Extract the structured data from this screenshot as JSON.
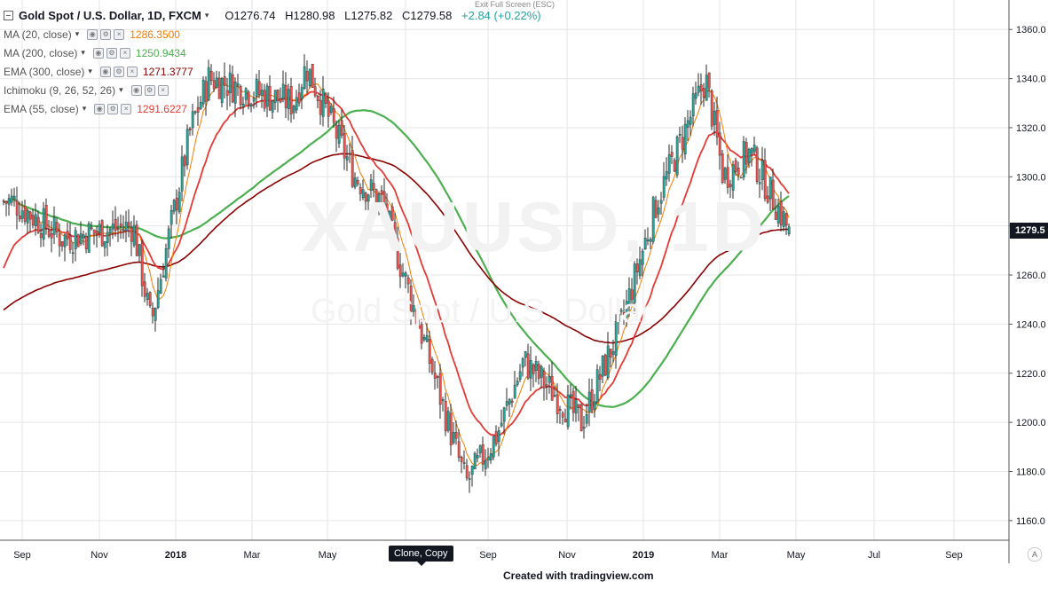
{
  "header": {
    "symbol_title": "Gold Spot / U.S. Dollar, 1D, FXCM",
    "open": "O1276.74",
    "high": "H1280.98",
    "low": "L1275.82",
    "close": "C1279.58",
    "change": "+2.84 (+0.22%)",
    "exit_full_screen": "Exit Full Screen (ESC)"
  },
  "indicators": [
    {
      "label": "MA (20, close)",
      "value": "1286.3500",
      "color": "#f57c00"
    },
    {
      "label": "MA (200, close)",
      "value": "1250.9434",
      "color": "#4caf50"
    },
    {
      "label": "EMA (300, close)",
      "value": "1271.3777",
      "color": "#8b0000"
    },
    {
      "label": "Ichimoku (9, 26, 52, 26)",
      "value": "",
      "color": "#2196f3"
    },
    {
      "label": "EMA (55, close)",
      "value": "1291.6227",
      "color": "#e53935"
    }
  ],
  "watermark": {
    "symbol": "XAUUSD, 1D",
    "desc": "Gold Spot / U.S. Dollar"
  },
  "current_price_label": "1279.5",
  "tooltip": "Clone, Copy",
  "credit": "Created with tradingview.com",
  "auto_button": "A",
  "colors": {
    "up": "#26a69a",
    "down": "#ef5350",
    "ma20": "#f57c00",
    "ma200": "#4caf50",
    "ema300": "#8b0000",
    "ema55": "#e53935",
    "grid": "#e6e6e6"
  },
  "chart_data": {
    "type": "candlestick",
    "title": "Gold Spot / U.S. Dollar, 1D, FXCM",
    "y_ticks": [
      1160,
      1180,
      1200,
      1220,
      1240,
      1260,
      1280,
      1300,
      1320,
      1340,
      1360
    ],
    "ylim": [
      1152,
      1372
    ],
    "x_labels": [
      "Sep",
      "Nov",
      "2018",
      "Mar",
      "May",
      "Jul",
      "Sep",
      "Nov",
      "2019",
      "Mar",
      "May",
      "Jul",
      "Sep"
    ],
    "x_bold": [
      "2018",
      "2019"
    ],
    "grid": true,
    "price_series": {
      "name": "XAUUSD",
      "x": [
        "2017-09",
        "2017-10",
        "2017-11",
        "2017-12-10",
        "2018-01",
        "2018-02",
        "2018-03",
        "2018-04",
        "2018-05",
        "2018-06",
        "2018-07",
        "2018-08-15",
        "2018-09",
        "2018-10",
        "2018-11-12",
        "2018-12",
        "2019-01",
        "2019-02-20",
        "2019-03",
        "2019-04-05",
        "2019-04-25"
      ],
      "close": [
        1290,
        1275,
        1280,
        1240,
        1320,
        1340,
        1330,
        1345,
        1300,
        1290,
        1230,
        1175,
        1195,
        1225,
        1200,
        1240,
        1290,
        1340,
        1300,
        1310,
        1279
      ]
    },
    "series": [
      {
        "name": "MA (20, close)",
        "last": 1286.35
      },
      {
        "name": "MA (200, close)",
        "last": 1250.9434
      },
      {
        "name": "EMA (300, close)",
        "last": 1271.3777
      },
      {
        "name": "EMA (55, close)",
        "last": 1291.6227
      }
    ]
  }
}
